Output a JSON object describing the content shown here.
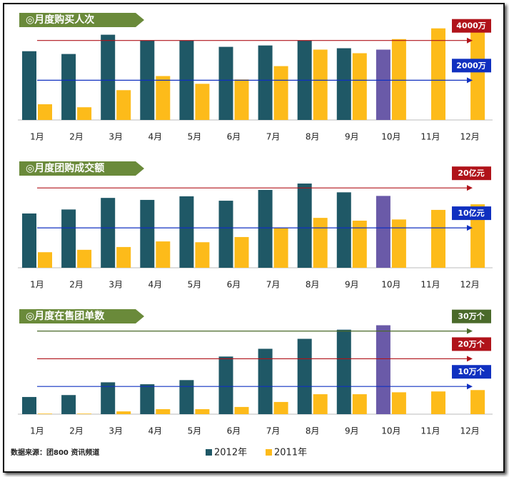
{
  "source": "数据来源：团800 资讯频道",
  "chart_data": [
    {
      "type": "bar",
      "title": "◎月度购买人次",
      "categories": [
        "1月",
        "2月",
        "3月",
        "4月",
        "5月",
        "6月",
        "7月",
        "8月",
        "9月",
        "10月",
        "11月",
        "12月"
      ],
      "series": [
        {
          "name": "2012年",
          "color": "#1f5866",
          "values": [
            3460,
            3320,
            4290,
            4000,
            4000,
            3680,
            3750,
            4000,
            3610,
            3540,
            null,
            null
          ]
        },
        {
          "name": "2011年",
          "color": "#fdbb1a",
          "values": [
            790,
            640,
            1500,
            2210,
            1820,
            2040,
            2710,
            3540,
            3360,
            4070,
            4610,
            4500
          ]
        }
      ],
      "highlight": {
        "series": 0,
        "index": 9,
        "color": "#6a5aa8"
      },
      "ylim": [
        0,
        4600
      ],
      "yticks": [
        {
          "value": 4000,
          "label": "4000万",
          "color": "#b0131a"
        },
        {
          "value": 2000,
          "label": "2000万",
          "color": "#1030c0"
        }
      ]
    },
    {
      "type": "bar",
      "title": "◎月度团购成交额",
      "categories": [
        "1月",
        "2月",
        "3月",
        "4月",
        "5月",
        "6月",
        "7月",
        "8月",
        "9月",
        "10月",
        "11月",
        "12月"
      ],
      "series": [
        {
          "name": "2012年",
          "color": "#1f5866",
          "values": [
            13.6,
            14.6,
            17.5,
            17.0,
            17.9,
            16.8,
            19.5,
            21.1,
            18.9,
            18.0,
            null,
            null
          ]
        },
        {
          "name": "2011年",
          "color": "#fdbb1a",
          "values": [
            3.9,
            4.5,
            5.2,
            6.6,
            6.4,
            7.7,
            10.0,
            12.5,
            11.8,
            12.1,
            14.5,
            15.9
          ]
        }
      ],
      "highlight": {
        "series": 0,
        "index": 9,
        "color": "#6a5aa8"
      },
      "ylim": [
        0,
        22
      ],
      "yticks": [
        {
          "value": 20,
          "label": "20亿元",
          "color": "#b0131a"
        },
        {
          "value": 10,
          "label": "10亿元",
          "color": "#1030c0"
        }
      ]
    },
    {
      "type": "bar",
      "title": "◎月度在售团单数",
      "categories": [
        "1月",
        "2月",
        "3月",
        "4月",
        "5月",
        "6月",
        "7月",
        "8月",
        "9月",
        "10月",
        "11月",
        "12月"
      ],
      "series": [
        {
          "name": "2012年",
          "color": "#1f5866",
          "values": [
            6.2,
            6.9,
            11.5,
            10.8,
            12.3,
            20.8,
            23.6,
            27.2,
            30.5,
            32.1,
            null,
            null
          ]
        },
        {
          "name": "2011年",
          "color": "#fdbb1a",
          "values": [
            0.2,
            0.2,
            1.0,
            1.8,
            1.8,
            2.6,
            4.4,
            7.2,
            7.2,
            7.9,
            8.2,
            8.7
          ]
        }
      ],
      "highlight": {
        "series": 0,
        "index": 9,
        "color": "#6a5aa8"
      },
      "ylim": [
        0,
        33
      ],
      "yticks": [
        {
          "value": 30,
          "label": "30万个",
          "color": "#4a6a2a"
        },
        {
          "value": 20,
          "label": "20万个",
          "color": "#b0131a"
        },
        {
          "value": 10,
          "label": "10万个",
          "color": "#1030c0"
        }
      ]
    }
  ]
}
